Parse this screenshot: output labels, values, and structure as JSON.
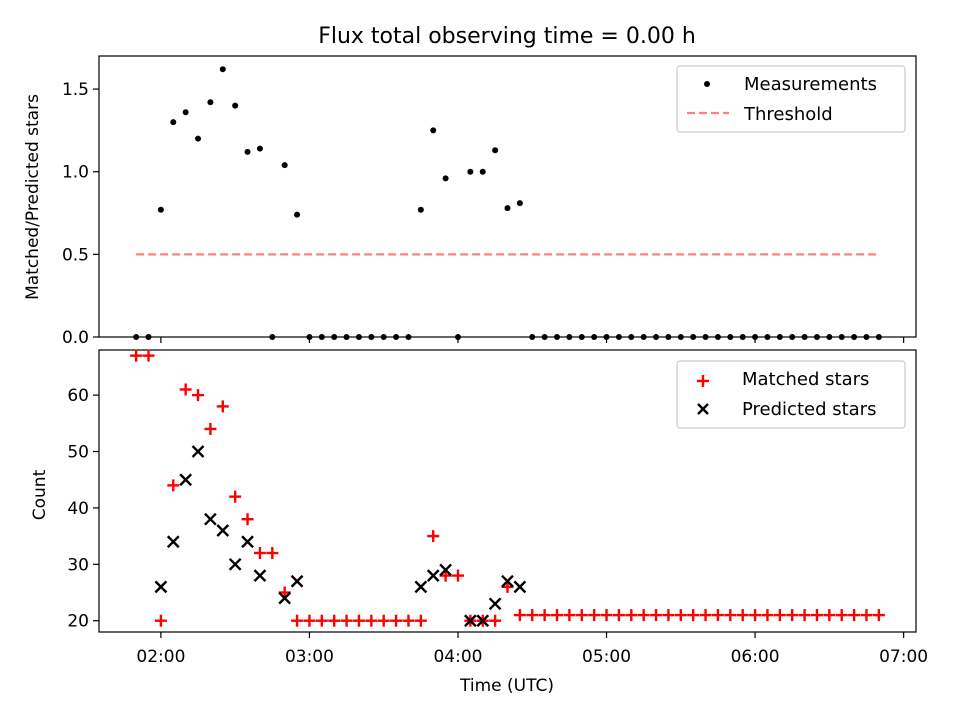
{
  "title": "Flux total observing time = 0.00 h",
  "chart_data": [
    {
      "type": "scatter",
      "ylabel": "Matched/Predicted stars",
      "xlabel": "",
      "ylim": [
        0,
        1.7
      ],
      "yticks": [
        "0.0",
        "0.5",
        "1.0",
        "1.5"
      ],
      "x_range": [
        "01:35",
        "07:05"
      ],
      "legend_position": "top-right",
      "legend": [
        "Measurements",
        "Threshold"
      ],
      "series": [
        {
          "name": "Measurements",
          "marker": "dot",
          "color": "#000000",
          "x": [
            "01:50",
            "01:55",
            "02:00",
            "02:05",
            "02:10",
            "02:15",
            "02:20",
            "02:25",
            "02:30",
            "02:35",
            "02:40",
            "02:45",
            "02:50",
            "02:55",
            "03:00",
            "03:05",
            "03:10",
            "03:15",
            "03:20",
            "03:25",
            "03:30",
            "03:35",
            "03:40",
            "03:45",
            "03:50",
            "03:55",
            "04:00",
            "04:05",
            "04:10",
            "04:15",
            "04:20",
            "04:25",
            "04:30",
            "04:35",
            "04:40",
            "04:45",
            "04:50",
            "04:55",
            "05:00",
            "05:05",
            "05:10",
            "05:15",
            "05:20",
            "05:25",
            "05:30",
            "05:35",
            "05:40",
            "05:45",
            "05:50",
            "05:55",
            "06:00",
            "06:05",
            "06:10",
            "06:15",
            "06:20",
            "06:25",
            "06:30",
            "06:35",
            "06:40",
            "06:45",
            "06:50"
          ],
          "values": [
            0.0,
            0.0,
            0.77,
            1.3,
            1.36,
            1.2,
            1.42,
            1.62,
            1.4,
            1.12,
            1.14,
            0.0,
            1.04,
            0.74,
            0.0,
            0.0,
            0.0,
            0.0,
            0.0,
            0.0,
            0.0,
            0.0,
            0.0,
            0.77,
            1.25,
            0.96,
            0.0,
            1.0,
            1.0,
            1.13,
            0.78,
            0.81,
            0.0,
            0.0,
            0.0,
            0.0,
            0.0,
            0.0,
            0.0,
            0.0,
            0.0,
            0.0,
            0.0,
            0.0,
            0.0,
            0.0,
            0.0,
            0.0,
            0.0,
            0.0,
            0.0,
            0.0,
            0.0,
            0.0,
            0.0,
            0.0,
            0.0,
            0.0,
            0.0,
            0.0,
            0.0
          ]
        },
        {
          "name": "Threshold",
          "type": "line",
          "style": "dashed",
          "color": "#ff7f7f",
          "x": [
            "01:50",
            "06:50"
          ],
          "values": [
            0.5,
            0.5
          ]
        }
      ]
    },
    {
      "type": "scatter",
      "ylabel": "Count",
      "xlabel": "Time (UTC)",
      "ylim": [
        18,
        68
      ],
      "yticks": [
        "20",
        "30",
        "40",
        "50",
        "60"
      ],
      "x_range": [
        "01:35",
        "07:05"
      ],
      "xticks": [
        "02:00",
        "03:00",
        "04:00",
        "05:00",
        "06:00",
        "07:00"
      ],
      "legend_position": "top-right",
      "legend": [
        "Matched stars",
        "Predicted stars"
      ],
      "series": [
        {
          "name": "Matched stars",
          "marker": "plus",
          "color": "#ff0000",
          "x": [
            "01:50",
            "01:55",
            "02:00",
            "02:05",
            "02:10",
            "02:15",
            "02:20",
            "02:25",
            "02:30",
            "02:35",
            "02:40",
            "02:45",
            "02:50",
            "02:55",
            "03:00",
            "03:05",
            "03:10",
            "03:15",
            "03:20",
            "03:25",
            "03:30",
            "03:35",
            "03:40",
            "03:45",
            "03:50",
            "03:55",
            "04:00",
            "04:05",
            "04:10",
            "04:15",
            "04:20",
            "04:25",
            "04:30",
            "04:35",
            "04:40",
            "04:45",
            "04:50",
            "04:55",
            "05:00",
            "05:05",
            "05:10",
            "05:15",
            "05:20",
            "05:25",
            "05:30",
            "05:35",
            "05:40",
            "05:45",
            "05:50",
            "05:55",
            "06:00",
            "06:05",
            "06:10",
            "06:15",
            "06:20",
            "06:25",
            "06:30",
            "06:35",
            "06:40",
            "06:45",
            "06:50"
          ],
          "values": [
            67,
            67,
            20,
            44,
            61,
            60,
            54,
            58,
            42,
            38,
            32,
            32,
            25,
            20,
            20,
            20,
            20,
            20,
            20,
            20,
            20,
            20,
            20,
            20,
            35,
            28,
            28,
            20,
            20,
            20,
            26,
            21,
            21,
            21,
            21,
            21,
            21,
            21,
            21,
            21,
            21,
            21,
            21,
            21,
            21,
            21,
            21,
            21,
            21,
            21,
            21,
            21,
            21,
            21,
            21,
            21,
            21,
            21,
            21,
            21,
            21
          ]
        },
        {
          "name": "Predicted stars",
          "marker": "x",
          "color": "#000000",
          "x": [
            "02:00",
            "02:05",
            "02:10",
            "02:15",
            "02:20",
            "02:25",
            "02:30",
            "02:35",
            "02:40",
            "02:50",
            "02:55",
            "03:45",
            "03:50",
            "03:55",
            "04:05",
            "04:10",
            "04:15",
            "04:20",
            "04:25"
          ],
          "values": [
            26,
            34,
            45,
            50,
            38,
            36,
            30,
            34,
            28,
            24,
            27,
            26,
            28,
            29,
            20,
            20,
            23,
            27,
            26
          ]
        }
      ]
    }
  ]
}
